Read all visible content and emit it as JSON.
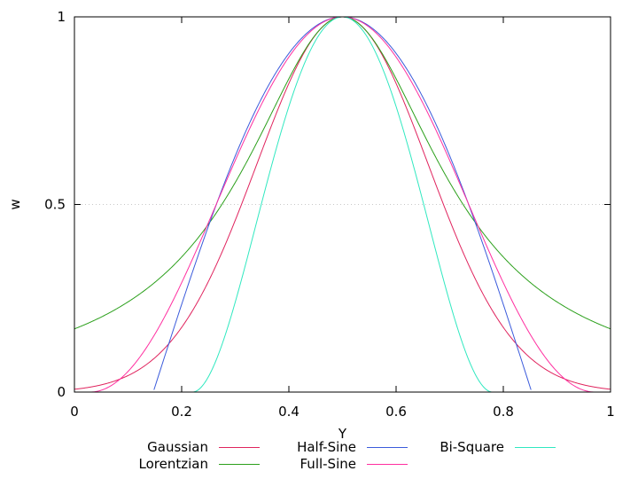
{
  "chart_data": {
    "type": "line",
    "title": "",
    "xlabel": "Y",
    "ylabel": "w",
    "xlim": [
      0,
      1
    ],
    "ylim": [
      0,
      1
    ],
    "xticks": [
      "0",
      "0.2",
      "0.4",
      "0.6",
      "0.8",
      "1"
    ],
    "yticks": [
      "0",
      "0.5",
      "1"
    ],
    "grid": "horizontal dotted line at 0.5",
    "legend_placement": "bottom, below x-axis",
    "series": [
      {
        "name": "Gaussian",
        "color": "#e0245e",
        "function": "gaussian",
        "x": [
          0,
          0.1,
          0.2,
          0.3,
          0.4,
          0.5,
          0.6,
          0.7,
          0.8,
          0.9,
          1
        ],
        "y": [
          0.044,
          0.14,
          0.33,
          0.61,
          0.89,
          1,
          0.89,
          0.61,
          0.33,
          0.14,
          0.044
        ]
      },
      {
        "name": "Lorentzian",
        "color": "#2ca01c",
        "function": "lorentzian",
        "x": [
          0,
          0.1,
          0.2,
          0.3,
          0.4,
          0.5,
          0.6,
          0.7,
          0.8,
          0.9,
          1
        ],
        "y": [
          0.18,
          0.26,
          0.38,
          0.58,
          0.85,
          1,
          0.85,
          0.58,
          0.38,
          0.26,
          0.18
        ]
      },
      {
        "name": "Half-Sine",
        "color": "#3b5bdb",
        "function": "halfsine",
        "x": [
          0.147,
          0.2,
          0.3,
          0.4,
          0.5,
          0.6,
          0.7,
          0.8,
          0.853
        ],
        "y": [
          0,
          0.24,
          0.66,
          0.94,
          1,
          0.94,
          0.66,
          0.24,
          0
        ]
      },
      {
        "name": "Full-Sine",
        "color": "#ff2fa0",
        "function": "fullsine",
        "x": [
          0.029,
          0.1,
          0.2,
          0.3,
          0.4,
          0.5,
          0.6,
          0.7,
          0.8,
          0.9,
          0.971
        ],
        "y": [
          0,
          0.05,
          0.3,
          0.66,
          0.92,
          1,
          0.92,
          0.66,
          0.3,
          0.05,
          0
        ]
      },
      {
        "name": "Bi-Square",
        "color": "#30e8c0",
        "function": "bisquare",
        "x": [
          0.22,
          0.25,
          0.3,
          0.35,
          0.4,
          0.5,
          0.6,
          0.65,
          0.7,
          0.75,
          0.78
        ],
        "y": [
          0,
          0.33,
          0.76,
          0.94,
          0.99,
          1,
          0.99,
          0.94,
          0.76,
          0.33,
          0
        ]
      }
    ]
  }
}
